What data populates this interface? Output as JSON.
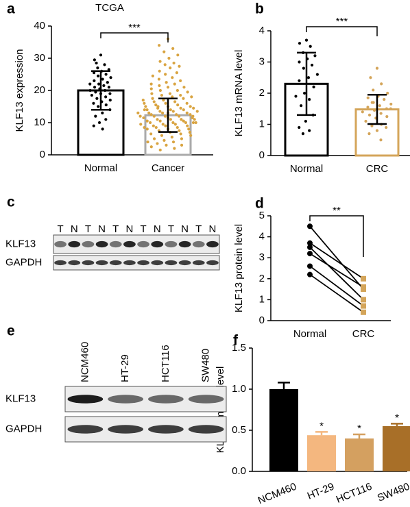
{
  "chart_data": [
    {
      "type": "bar_scatter",
      "panel": "a",
      "title": "TCGA",
      "ylabel": "KLF13 expression",
      "categories": [
        "Normal",
        "Cancer"
      ],
      "values": [
        20,
        12.3
      ],
      "errors": [
        6,
        5.2
      ],
      "colors": [
        "#000000",
        "#aaaaaa"
      ],
      "point_colors": [
        "#000000",
        "#d9a441"
      ],
      "annotation": "***",
      "ylim": [
        0,
        40
      ],
      "yticks": [
        0,
        10,
        20,
        30,
        40
      ],
      "points": [
        [
          31,
          29.5,
          28,
          27,
          26.5,
          26,
          25.5,
          25,
          24.5,
          24,
          23.5,
          23,
          22.5,
          22,
          22,
          21.5,
          21,
          21,
          20.5,
          20,
          20,
          19.5,
          19,
          19,
          18.5,
          18,
          17.5,
          17,
          16.5,
          16,
          15.5,
          15,
          14,
          13,
          12,
          11,
          10,
          9,
          8,
          28.5
        ],
        [
          36,
          34,
          33,
          32,
          31,
          30,
          29,
          28.5,
          28,
          27.5,
          27,
          26,
          25.5,
          25,
          24.5,
          24,
          23.5,
          23,
          22.5,
          22,
          22,
          21.5,
          21,
          21,
          20.5,
          20,
          20,
          19.5,
          19,
          19,
          18.5,
          18.5,
          18,
          18,
          17.5,
          17.5,
          17,
          17,
          16.5,
          16.5,
          16,
          16,
          16,
          15.5,
          15.5,
          15,
          15,
          15,
          14.5,
          14.5,
          14.5,
          14,
          14,
          14,
          13.5,
          13.5,
          13.5,
          13,
          13,
          13,
          13,
          12.5,
          12.5,
          12.5,
          12,
          12,
          12,
          12,
          11.5,
          11.5,
          11.5,
          11,
          11,
          11,
          11,
          10.5,
          10.5,
          10.5,
          10,
          10,
          10,
          10,
          9.5,
          9.5,
          9.5,
          9,
          9,
          9,
          8.5,
          8.5,
          8.5,
          8,
          8,
          8,
          7.5,
          7.5,
          7,
          7,
          6.5,
          6.5,
          6,
          6,
          5.5,
          5,
          5,
          4.5,
          4,
          4,
          3.5,
          3,
          3,
          2.5,
          2,
          1.5,
          12,
          13,
          14,
          11,
          15,
          10
        ]
      ]
    },
    {
      "type": "bar_scatter",
      "panel": "b",
      "ylabel": "KLF13 mRNA level",
      "categories": [
        "Normal",
        "CRC"
      ],
      "values": [
        2.3,
        1.48
      ],
      "errors": [
        1.0,
        0.47
      ],
      "colors": [
        "#000000",
        "#d4a55a"
      ],
      "point_colors": [
        "#000000",
        "#d4a55a"
      ],
      "annotation": "***",
      "ylim": [
        0,
        4
      ],
      "yticks": [
        0,
        1,
        2,
        3,
        4
      ],
      "points": [
        [
          3.7,
          3.6,
          3.5,
          3.3,
          3.2,
          3.1,
          3.0,
          2.9,
          2.8,
          2.6,
          2.5,
          2.4,
          2.2,
          2.0,
          1.9,
          1.8,
          1.6,
          1.3,
          1.1,
          0.9,
          0.8,
          0.7
        ],
        [
          2.8,
          2.5,
          2.3,
          2.1,
          2.0,
          1.9,
          1.85,
          1.8,
          1.7,
          1.65,
          1.6,
          1.55,
          1.5,
          1.45,
          1.4,
          1.35,
          1.3,
          1.25,
          1.2,
          1.1,
          1.0,
          0.95,
          0.9,
          0.8,
          0.7,
          0.5,
          1.7,
          1.5
        ]
      ]
    },
    {
      "type": "paired",
      "panel": "d",
      "ylabel": "KLF13 protein level",
      "categories": [
        "Normal",
        "CRC"
      ],
      "colors": [
        "#000000",
        "#d4a55a"
      ],
      "annotation": "**",
      "ylim": [
        0,
        5
      ],
      "yticks": [
        0,
        1,
        2,
        3,
        4,
        5
      ],
      "points": [
        [
          4.5,
          3.7,
          3.5,
          3.2,
          2.6,
          2.2
        ],
        [
          1.5,
          2.0,
          1.0,
          1.6,
          0.7,
          0.4
        ]
      ]
    },
    {
      "type": "bar",
      "panel": "f",
      "ylabel": "KLF13 mRNA level",
      "categories": [
        "NCM460",
        "HT-29",
        "HCT116",
        "SW480"
      ],
      "values": [
        1.0,
        0.44,
        0.4,
        0.55
      ],
      "errors": [
        0.08,
        0.04,
        0.05,
        0.03
      ],
      "colors": [
        "#000000",
        "#f4b77f",
        "#d4a060",
        "#a86f28"
      ],
      "annotations": [
        null,
        "*",
        "*",
        "*"
      ],
      "ylim": [
        0,
        1.5
      ],
      "yticks": [
        {
          "value": 0,
          "label": "0.0"
        },
        {
          "value": 0.5,
          "label": "0.5"
        },
        {
          "value": 1,
          "label": "1.0"
        },
        {
          "value": 1.5,
          "label": "1.5"
        }
      ]
    }
  ],
  "blots": [
    {
      "panel": "c",
      "lanes": [
        "T",
        "N",
        "T",
        "N",
        "T",
        "N",
        "T",
        "N",
        "T",
        "N",
        "T",
        "N"
      ],
      "rows": [
        "KLF13",
        "GAPDH"
      ]
    },
    {
      "panel": "e",
      "lanes": [
        "NCM460",
        "HT-29",
        "HCT116",
        "SW480"
      ],
      "rows": [
        "KLF13",
        "GAPDH"
      ]
    }
  ]
}
